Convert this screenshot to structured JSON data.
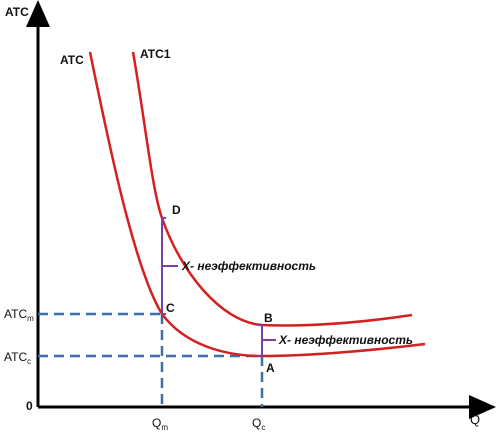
{
  "axes": {
    "y_label": "ATC",
    "x_label": "Q",
    "origin_label": "0"
  },
  "curves": {
    "atc": {
      "label": "ATC"
    },
    "atc1": {
      "label": "ATC1"
    }
  },
  "points": {
    "a": "A",
    "b": "B",
    "c": "C",
    "d": "D"
  },
  "levels": {
    "atc_m": {
      "main": "ATC",
      "sub": "m"
    },
    "atc_c": {
      "main": "ATC",
      "sub": "c"
    }
  },
  "quantities": {
    "q_m": {
      "main": "Q",
      "sub": "m"
    },
    "q_c": {
      "main": "Q",
      "sub": "c"
    }
  },
  "annotations": {
    "x_inefficiency_left": "X- неэффективность",
    "x_inefficiency_right": "X- неэффективность"
  },
  "colors": {
    "curve": "#d42020",
    "axis": "#000000",
    "dashed": "#3e6ea8",
    "bracket": "#7b3fa8"
  }
}
